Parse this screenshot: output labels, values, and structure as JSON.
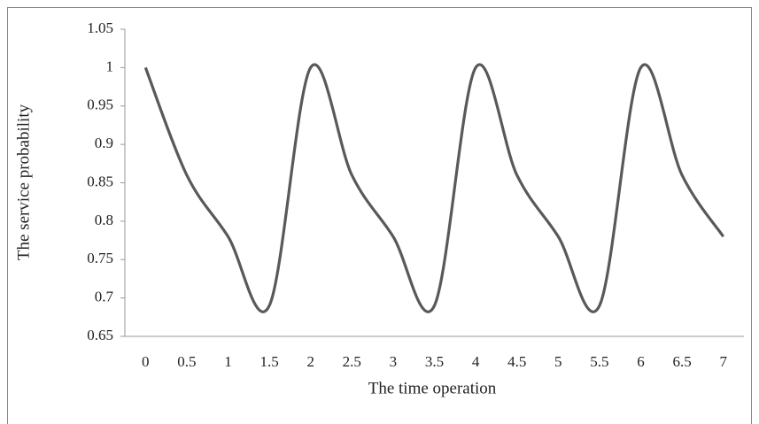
{
  "chart_data": {
    "type": "line",
    "x_label": "The time operation",
    "y_label": "The service probability",
    "categories": [
      "0",
      "0.5",
      "1",
      "1.5",
      "2",
      "2.5",
      "3",
      "3.5",
      "4",
      "4.5",
      "5",
      "5.5",
      "6",
      "6.5",
      "7"
    ],
    "values": [
      1.0,
      0.86,
      0.78,
      0.69,
      1.0,
      0.86,
      0.78,
      0.69,
      1.0,
      0.86,
      0.78,
      0.69,
      1.0,
      0.86,
      0.78
    ],
    "color": "#595959",
    "ylim": [
      0.65,
      1.05
    ],
    "yticks": [
      0.65,
      0.7,
      0.75,
      0.8,
      0.85,
      0.9,
      0.95,
      1,
      1.05
    ],
    "grid": false
  }
}
